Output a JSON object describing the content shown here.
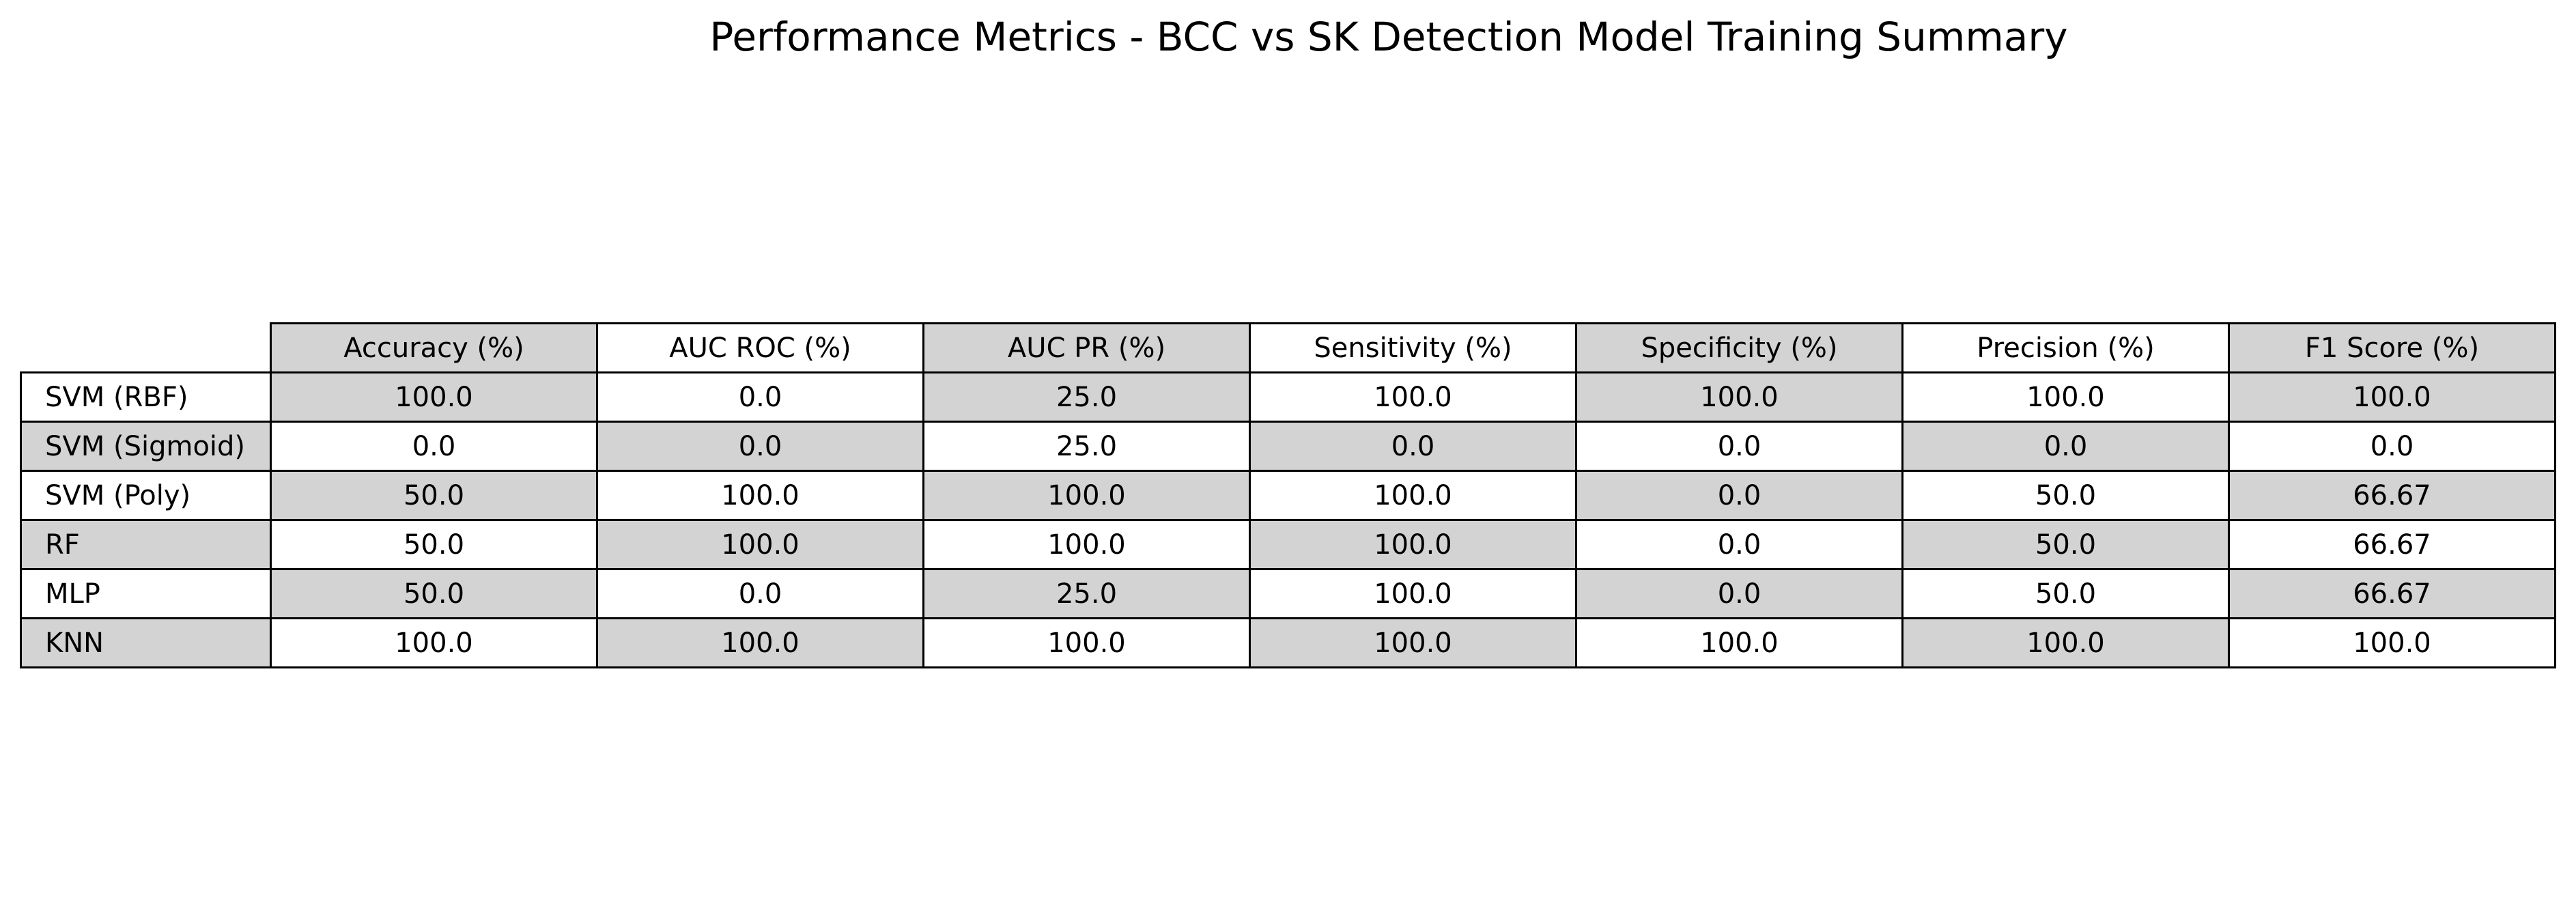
{
  "chart_data": {
    "type": "table",
    "title": "Performance Metrics - BCC vs SK Detection Model Training Summary",
    "columns": [
      "Accuracy (%)",
      "AUC ROC (%)",
      "AUC PR (%)",
      "Sensitivity (%)",
      "Specificity (%)",
      "Precision (%)",
      "F1 Score (%)"
    ],
    "rows": [
      {
        "label": "SVM (RBF)",
        "values": [
          "100.0",
          "0.0",
          "25.0",
          "100.0",
          "100.0",
          "100.0",
          "100.0"
        ]
      },
      {
        "label": "SVM (Sigmoid)",
        "values": [
          "0.0",
          "0.0",
          "25.0",
          "0.0",
          "0.0",
          "0.0",
          "0.0"
        ]
      },
      {
        "label": "SVM (Poly)",
        "values": [
          "50.0",
          "100.0",
          "100.0",
          "100.0",
          "0.0",
          "50.0",
          "66.67"
        ]
      },
      {
        "label": "RF",
        "values": [
          "50.0",
          "100.0",
          "100.0",
          "100.0",
          "0.0",
          "50.0",
          "66.67"
        ]
      },
      {
        "label": "MLP",
        "values": [
          "50.0",
          "0.0",
          "25.0",
          "100.0",
          "0.0",
          "50.0",
          "66.67"
        ]
      },
      {
        "label": "KNN",
        "values": [
          "100.0",
          "100.0",
          "100.0",
          "100.0",
          "100.0",
          "100.0",
          "100.0"
        ]
      }
    ]
  },
  "colors": {
    "shaded_cell": "#d3d3d3",
    "plain_cell": "#ffffff",
    "border": "#000000"
  }
}
